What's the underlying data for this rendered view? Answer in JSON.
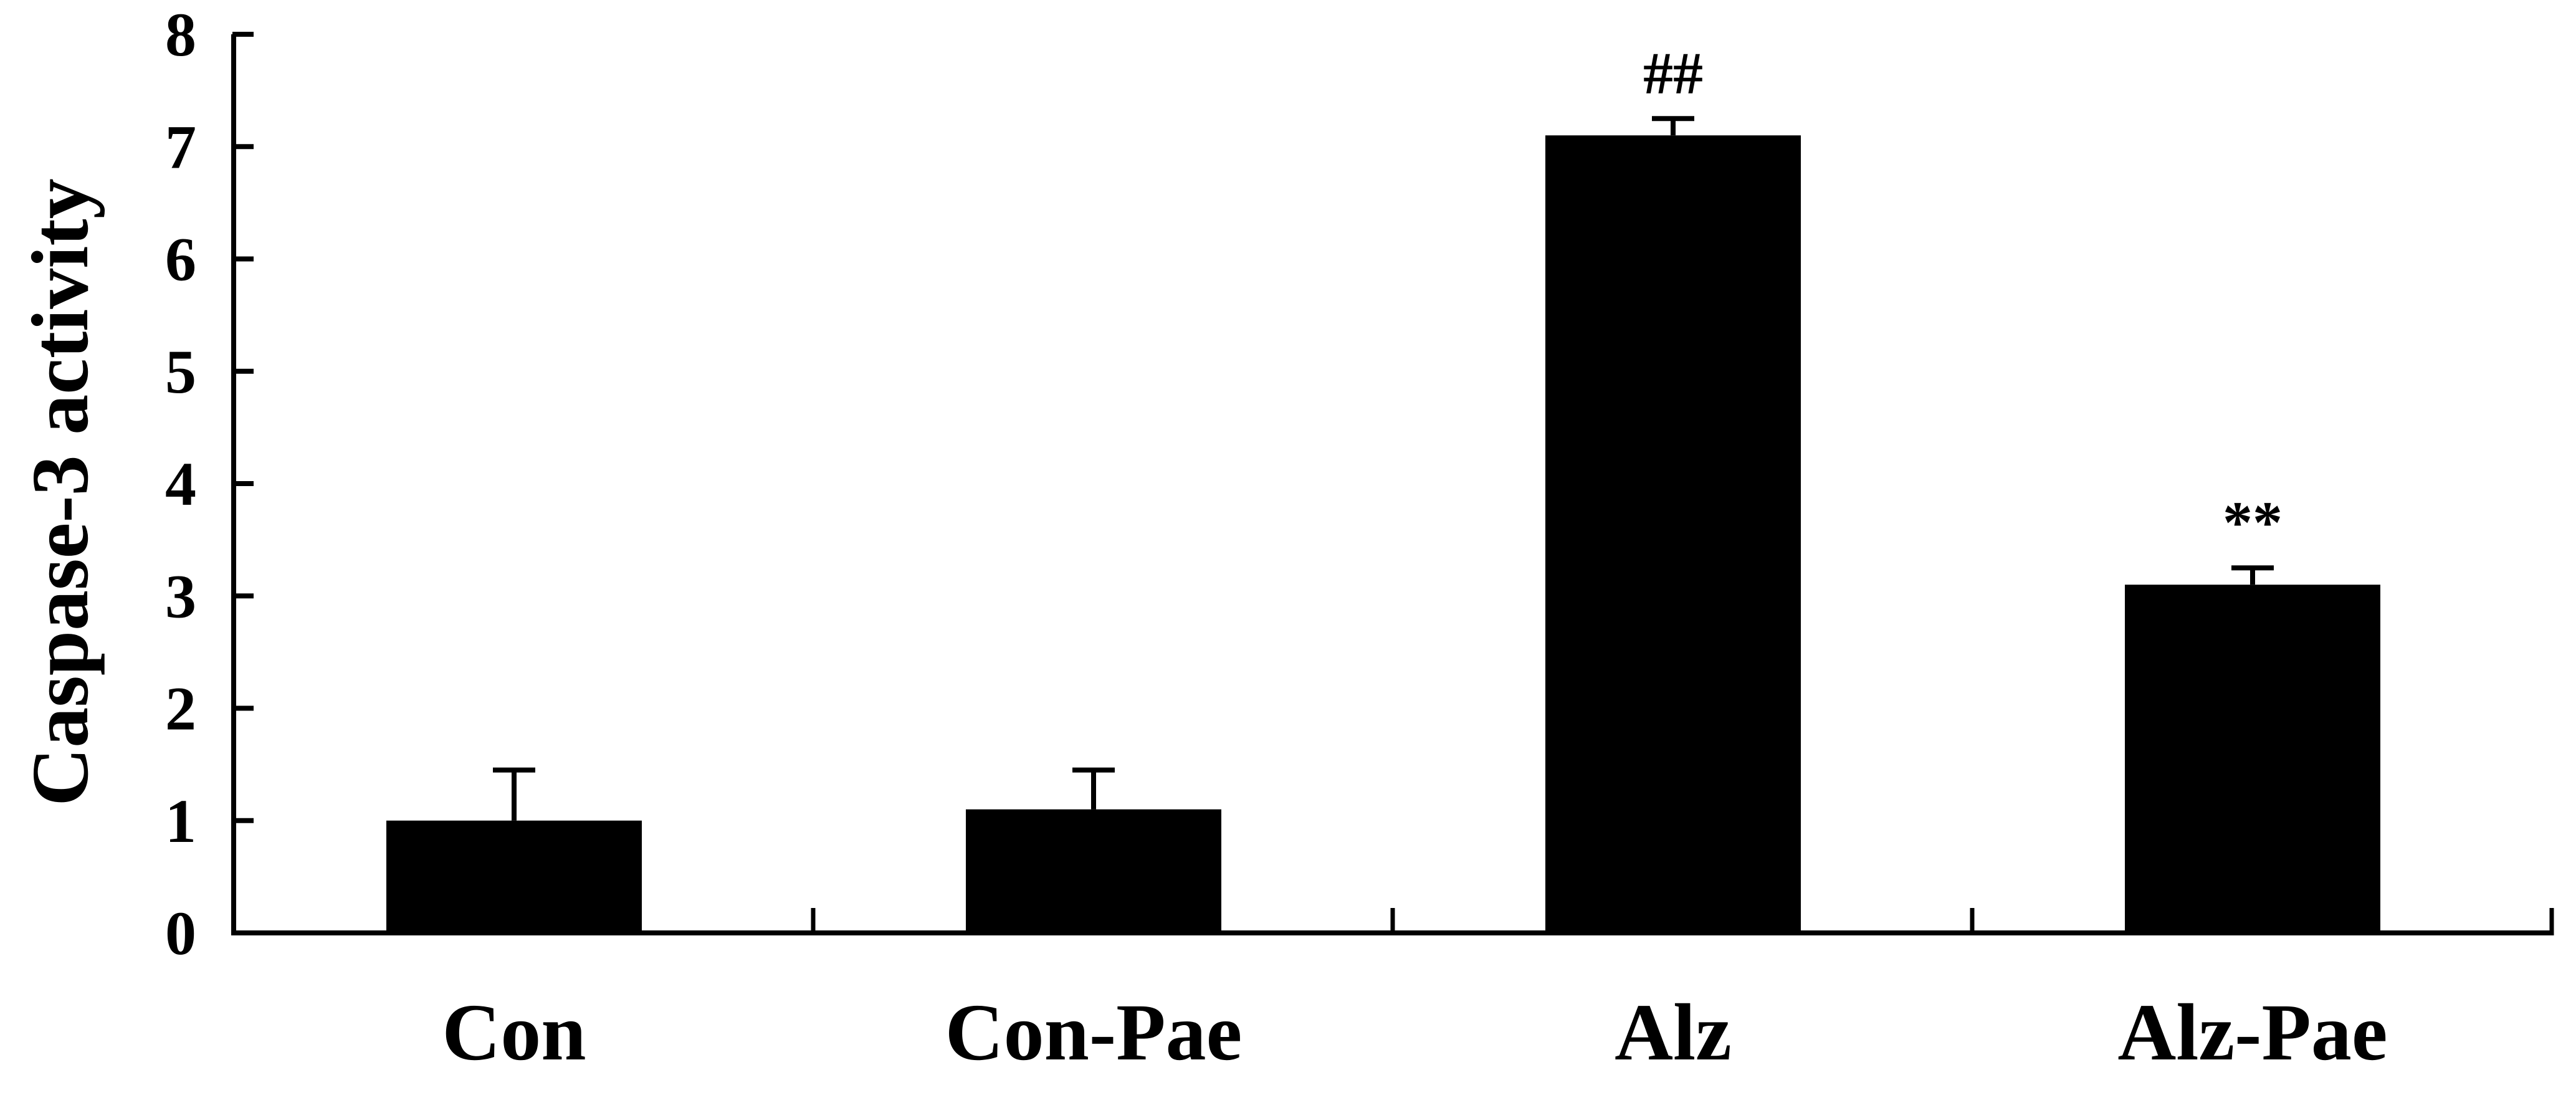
{
  "chart_data": {
    "type": "bar",
    "title": "",
    "xlabel": "",
    "ylabel": "Caspase-3 activity",
    "ylim": [
      0,
      8
    ],
    "yticks": [
      "0",
      "1",
      "2",
      "3",
      "4",
      "5",
      "6",
      "7",
      "8"
    ],
    "categories": [
      "Con",
      "Con-Pae",
      "Alz",
      "Alz-Pae"
    ],
    "values": [
      1.0,
      1.1,
      7.1,
      3.1
    ],
    "errors": [
      0.45,
      0.35,
      0.15,
      0.15
    ],
    "annotations": [
      "",
      "",
      "##",
      "**"
    ],
    "bar_color": "#000000",
    "grid": false,
    "legend": "none"
  }
}
